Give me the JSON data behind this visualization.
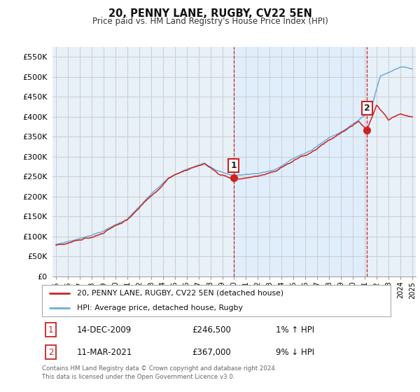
{
  "title": "20, PENNY LANE, RUGBY, CV22 5EN",
  "subtitle": "Price paid vs. HM Land Registry's House Price Index (HPI)",
  "xlim_left": 1994.7,
  "xlim_right": 2025.3,
  "ylim": [
    0,
    575000
  ],
  "yticks": [
    0,
    50000,
    100000,
    150000,
    200000,
    250000,
    300000,
    350000,
    400000,
    450000,
    500000,
    550000
  ],
  "ytick_labels": [
    "£0",
    "£50K",
    "£100K",
    "£150K",
    "£200K",
    "£250K",
    "£300K",
    "£350K",
    "£400K",
    "£450K",
    "£500K",
    "£550K"
  ],
  "hpi_color": "#6baed6",
  "price_color": "#cc2222",
  "shade_color": "#ddeeff",
  "marker1_year": 2009.95,
  "marker1_value": 246500,
  "marker2_year": 2021.18,
  "marker2_value": 367000,
  "legend_entry1": "20, PENNY LANE, RUGBY, CV22 5EN (detached house)",
  "legend_entry2": "HPI: Average price, detached house, Rugby",
  "table_row1": [
    "1",
    "14-DEC-2009",
    "£246,500",
    "1% ↑ HPI"
  ],
  "table_row2": [
    "2",
    "11-MAR-2021",
    "£367,000",
    "9% ↓ HPI"
  ],
  "footnote": "Contains HM Land Registry data © Crown copyright and database right 2024.\nThis data is licensed under the Open Government Licence v3.0.",
  "grid_color": "#cccccc",
  "plot_bg_color": "#e8f0f8"
}
